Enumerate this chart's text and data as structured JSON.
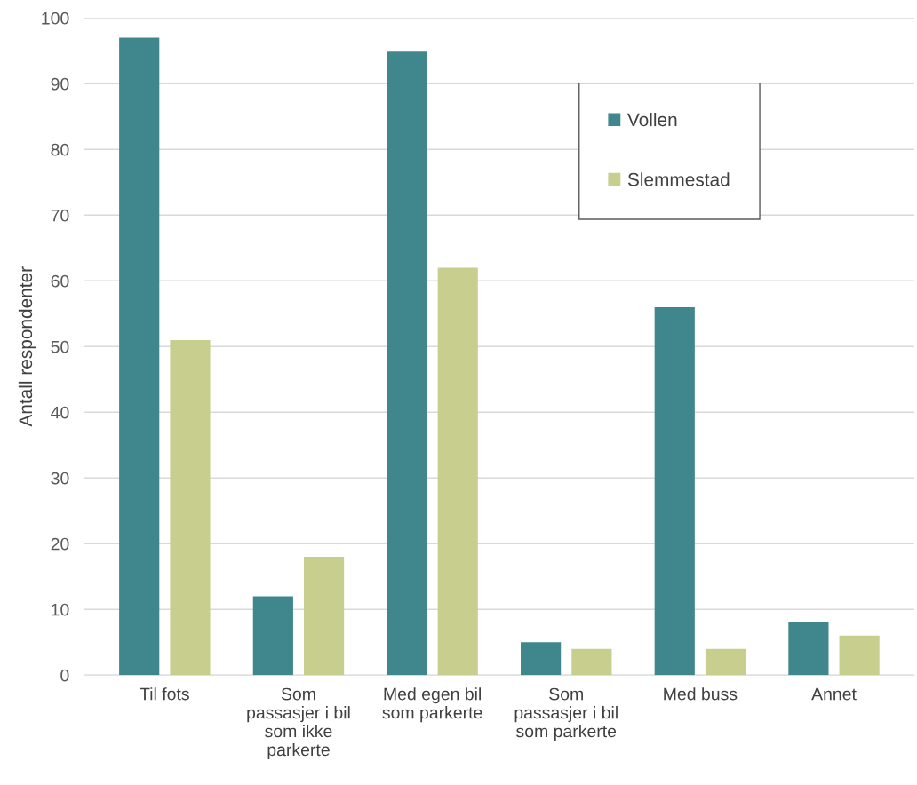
{
  "chart_data": {
    "type": "bar",
    "ylabel": "Antall respondenter",
    "categories": [
      "Til fots",
      "Som\npassasjer i bil\nsom ikke\nparkerte",
      "Med egen bil\nsom parkerte",
      "Som\npassasjer i bil\nsom parkerte",
      "Med buss",
      "Annet"
    ],
    "series": [
      {
        "name": "Vollen",
        "color": "#3f878c",
        "values": [
          97,
          12,
          95,
          5,
          56,
          8
        ]
      },
      {
        "name": "Slemmestad",
        "color": "#c8cf8e",
        "values": [
          51,
          18,
          62,
          4,
          4,
          6
        ]
      }
    ],
    "ylim": [
      0,
      100
    ],
    "yticks": [
      0,
      10,
      20,
      30,
      40,
      50,
      60,
      70,
      80,
      90,
      100
    ],
    "grid": "y",
    "legend": "top right"
  }
}
